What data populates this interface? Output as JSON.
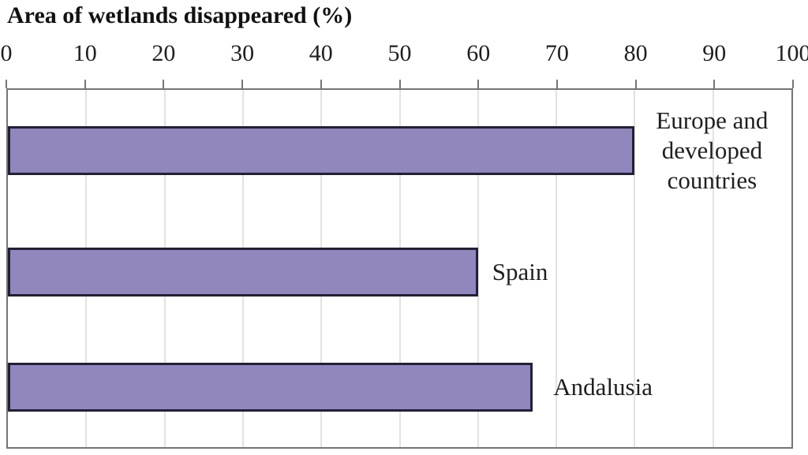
{
  "title": "Area of wetlands disappeared (%)",
  "chart_data": {
    "type": "bar",
    "orientation": "horizontal",
    "title": "Area of wetlands disappeared (%)",
    "xlabel": "",
    "ylabel": "",
    "xlim": [
      0,
      100
    ],
    "xticks": [
      0,
      10,
      20,
      30,
      40,
      50,
      60,
      70,
      80,
      90,
      100
    ],
    "xtick_labels": [
      "0",
      "10",
      "20",
      "30",
      "40",
      "50",
      "60",
      "70",
      "80",
      "90",
      "100"
    ],
    "grid": true,
    "legend": false,
    "axis_position": "top",
    "categories": [
      "Europe and developed countries",
      "Spain",
      "Andalusia"
    ],
    "values": [
      80,
      60,
      67
    ],
    "category_label_lines": [
      [
        "Europe and",
        "developed",
        "countries"
      ],
      [
        "Spain"
      ],
      [
        "Andalusia"
      ]
    ]
  },
  "colors": {
    "bar_fill": "#9187BD",
    "bar_border": "#232035",
    "plot_border": "#757575",
    "gridline": "#e2e2e2",
    "text": "#1f1f1f",
    "background": "#ffffff"
  }
}
